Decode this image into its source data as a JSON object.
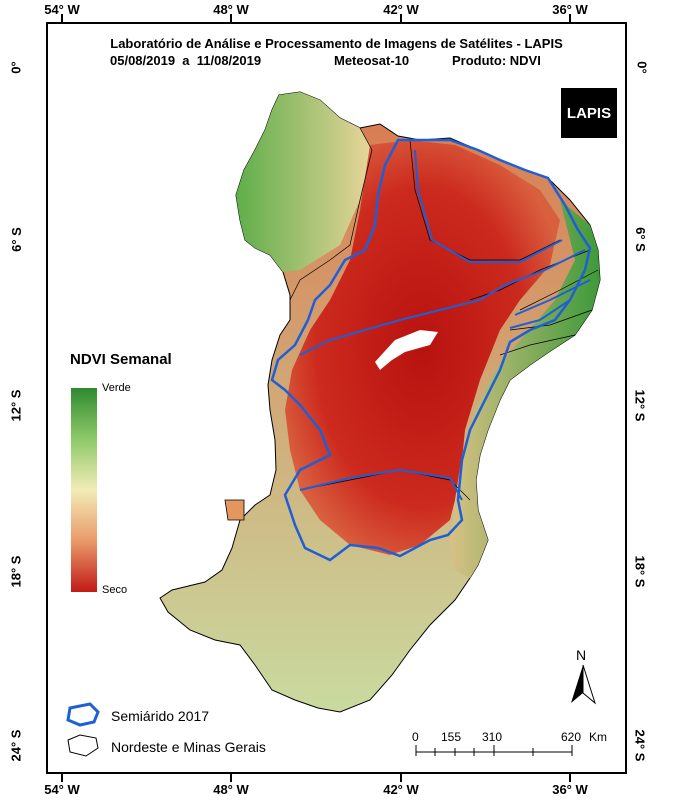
{
  "title_line1": "Laboratório de Análise e Processamento de Imagens de Satélites - LAPIS",
  "period": "05/08/2019  a  11/08/2019",
  "satellite": "Meteosat-10",
  "product": "Produto: NDVI",
  "logo_text": "LAPIS",
  "lon_labels": [
    "54° W",
    "48° W",
    "42° W",
    "36° W"
  ],
  "lat_labels": [
    "0°",
    "6° S",
    "12° S",
    "18° S",
    "24° S"
  ],
  "legend": {
    "title": "NDVI Semanal",
    "high_label": "Verde",
    "low_label": "Seco",
    "semiarid_label": "Semiárido 2017",
    "region_label": "Nordeste e Minas Gerais"
  },
  "north_label": "N",
  "scale": {
    "ticks": [
      "0",
      "155",
      "310",
      "620"
    ],
    "unit": "Km"
  },
  "colors": {
    "green": "#3f9a3a",
    "light_green": "#a7d27c",
    "cream": "#f0e6b0",
    "orange": "#e4965f",
    "red": "#c01a16",
    "semiarid_border": "#1f5fd6"
  }
}
